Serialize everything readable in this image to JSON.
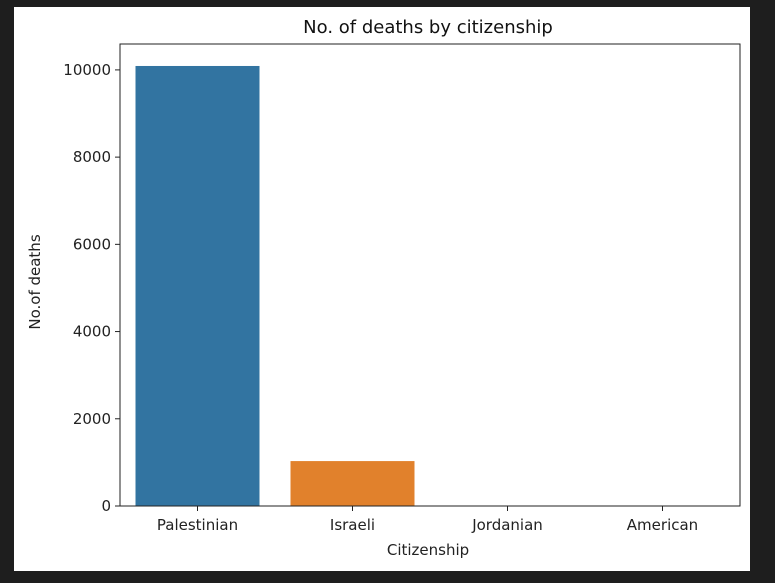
{
  "chart_data": {
    "type": "bar",
    "title": "No. of deaths by citizenship",
    "xlabel": "Citizenship",
    "ylabel": "No.of deaths",
    "categories": [
      "Palestinian",
      "Israeli",
      "Jordanian",
      "American"
    ],
    "values": [
      10090,
      1030,
      1,
      1
    ],
    "ylim": [
      0,
      10594
    ],
    "yticks": [
      0,
      2000,
      4000,
      6000,
      8000,
      10000
    ],
    "colors": [
      "#3274a1",
      "#e1812c",
      "#3a923a",
      "#c03d3e"
    ],
    "grid": false,
    "legend": "none"
  }
}
